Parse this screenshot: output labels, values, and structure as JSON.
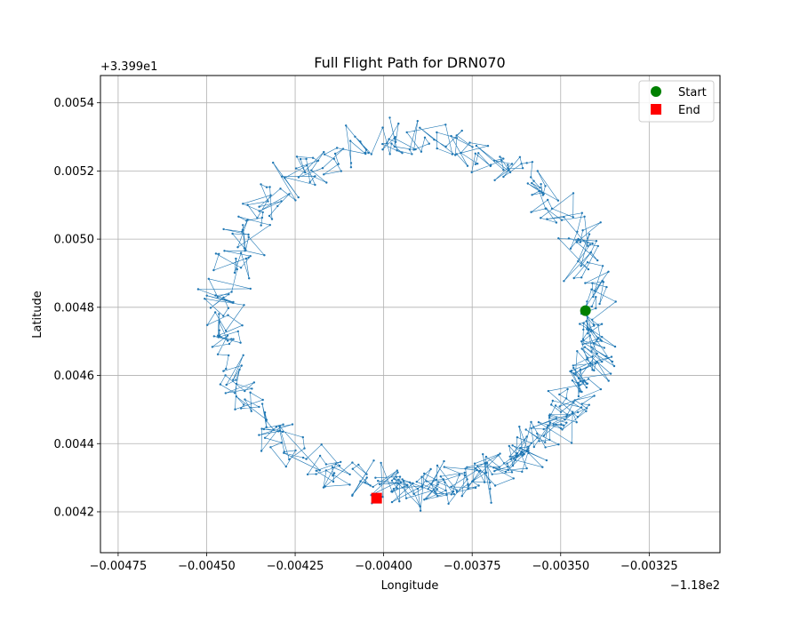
{
  "chart_data": {
    "type": "scatter",
    "title": "Full Flight Path for DRN070",
    "xlabel": "Longitude",
    "ylabel": "Latitude",
    "x_offset_label": "−1.18e2",
    "y_offset_label": "+3.399e1",
    "x_offset": -118.0,
    "y_offset": 33.99,
    "xlim": [
      -0.0048,
      -0.00305
    ],
    "ylim": [
      0.00408,
      0.00548
    ],
    "x_ticks": [
      -0.00475,
      -0.0045,
      -0.00425,
      -0.004,
      -0.00375,
      -0.0035,
      -0.00325
    ],
    "x_tick_labels": [
      "−0.00475",
      "−0.00450",
      "−0.00425",
      "−0.00400",
      "−0.00375",
      "−0.00350",
      "−0.00325"
    ],
    "y_ticks": [
      0.0042,
      0.0044,
      0.0046,
      0.0048,
      0.005,
      0.0052,
      0.0054
    ],
    "y_tick_labels": [
      "0.0042",
      "0.0044",
      "0.0046",
      "0.0048",
      "0.0050",
      "0.0052",
      "0.0054"
    ],
    "grid": true,
    "legend_position": "top-right",
    "path_color": "#1f77b4",
    "series": [
      {
        "name": "Start",
        "marker": "circle",
        "color": "#008000",
        "x": [
          -0.00343
        ],
        "y": [
          0.00479
        ]
      },
      {
        "name": "End",
        "marker": "square",
        "color": "#ff0000",
        "x": [
          -0.00402
        ],
        "y": [
          0.00424
        ]
      }
    ],
    "path": {
      "description_points": 620,
      "center": [
        -0.003925,
        0.00478
      ],
      "radius_x": 0.00053,
      "radius_y": 0.00051,
      "noise": 9e-05,
      "start_angle_deg": 0,
      "end_angle_deg": -100,
      "seed": 70
    }
  }
}
